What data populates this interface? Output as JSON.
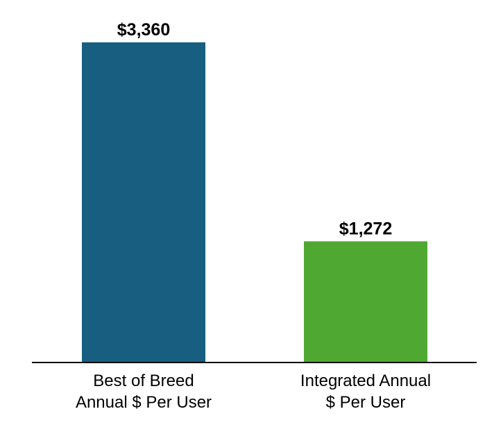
{
  "chart_data": {
    "type": "bar",
    "categories": [
      [
        "Best of Breed",
        "Annual $ Per User"
      ],
      [
        "Integrated Annual",
        "$ Per User"
      ]
    ],
    "values": [
      3360,
      1272
    ],
    "data_labels": [
      "$3,360",
      "$1,272"
    ],
    "colors": [
      "#175e80",
      "#4fa832"
    ],
    "axis_color": "#000000",
    "grid": false,
    "legend": "none"
  }
}
